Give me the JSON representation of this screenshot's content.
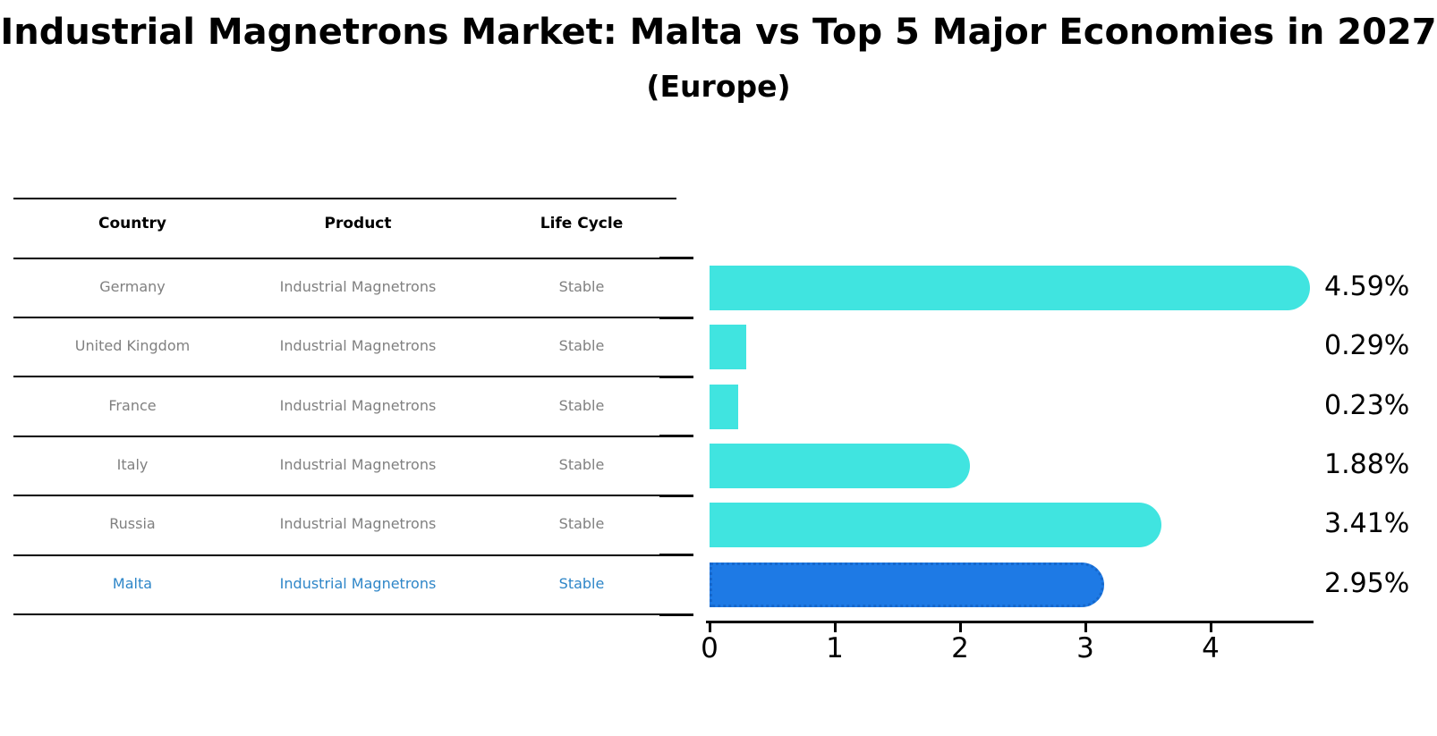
{
  "title": "Industrial Magnetrons Market: Malta vs Top 5 Major Economies in 2027",
  "subtitle": "(Europe)",
  "table": {
    "headers": [
      "Country",
      "Product",
      "Life Cycle"
    ],
    "rows": [
      {
        "country": "Germany",
        "product": "Industrial Magnetrons",
        "life_cycle": "Stable",
        "highlight": false
      },
      {
        "country": "United Kingdom",
        "product": "Industrial Magnetrons",
        "life_cycle": "Stable",
        "highlight": false
      },
      {
        "country": "France",
        "product": "Industrial Magnetrons",
        "life_cycle": "Stable",
        "highlight": false
      },
      {
        "country": "Italy",
        "product": "Industrial Magnetrons",
        "life_cycle": "Stable",
        "highlight": false
      },
      {
        "country": "Russia",
        "product": "Industrial Magnetrons",
        "life_cycle": "Stable",
        "highlight": false
      },
      {
        "country": "Malta",
        "product": "Industrial Magnetrons",
        "life_cycle": "Stable",
        "highlight": true
      }
    ]
  },
  "chart_data": {
    "type": "bar",
    "orientation": "horizontal",
    "title": "Industrial Magnetrons Market: Malta vs Top 5 Major Economies in 2027",
    "subtitle": "(Europe)",
    "categories": [
      "Germany",
      "United Kingdom",
      "France",
      "Italy",
      "Russia",
      "Malta"
    ],
    "values": [
      4.59,
      0.29,
      0.23,
      1.88,
      3.41,
      2.95
    ],
    "value_labels": [
      "4.59%",
      "0.29%",
      "0.23%",
      "1.88%",
      "3.41%",
      "2.95%"
    ],
    "xlabel": "",
    "ylabel": "",
    "xticks": [
      0,
      1,
      2,
      3,
      4
    ],
    "xlim": [
      0,
      4.8
    ],
    "grid": false,
    "legend": false,
    "highlight_index": 5
  },
  "colors": {
    "bar": "#40E4E0",
    "highlight_bar": "#1E7AE5",
    "highlight_border": "#1668CC",
    "highlight_text": "#2E86C8",
    "row_text": "#808080",
    "header_text": "#000000",
    "axis": "#000000",
    "background": "#FFFFFF"
  }
}
